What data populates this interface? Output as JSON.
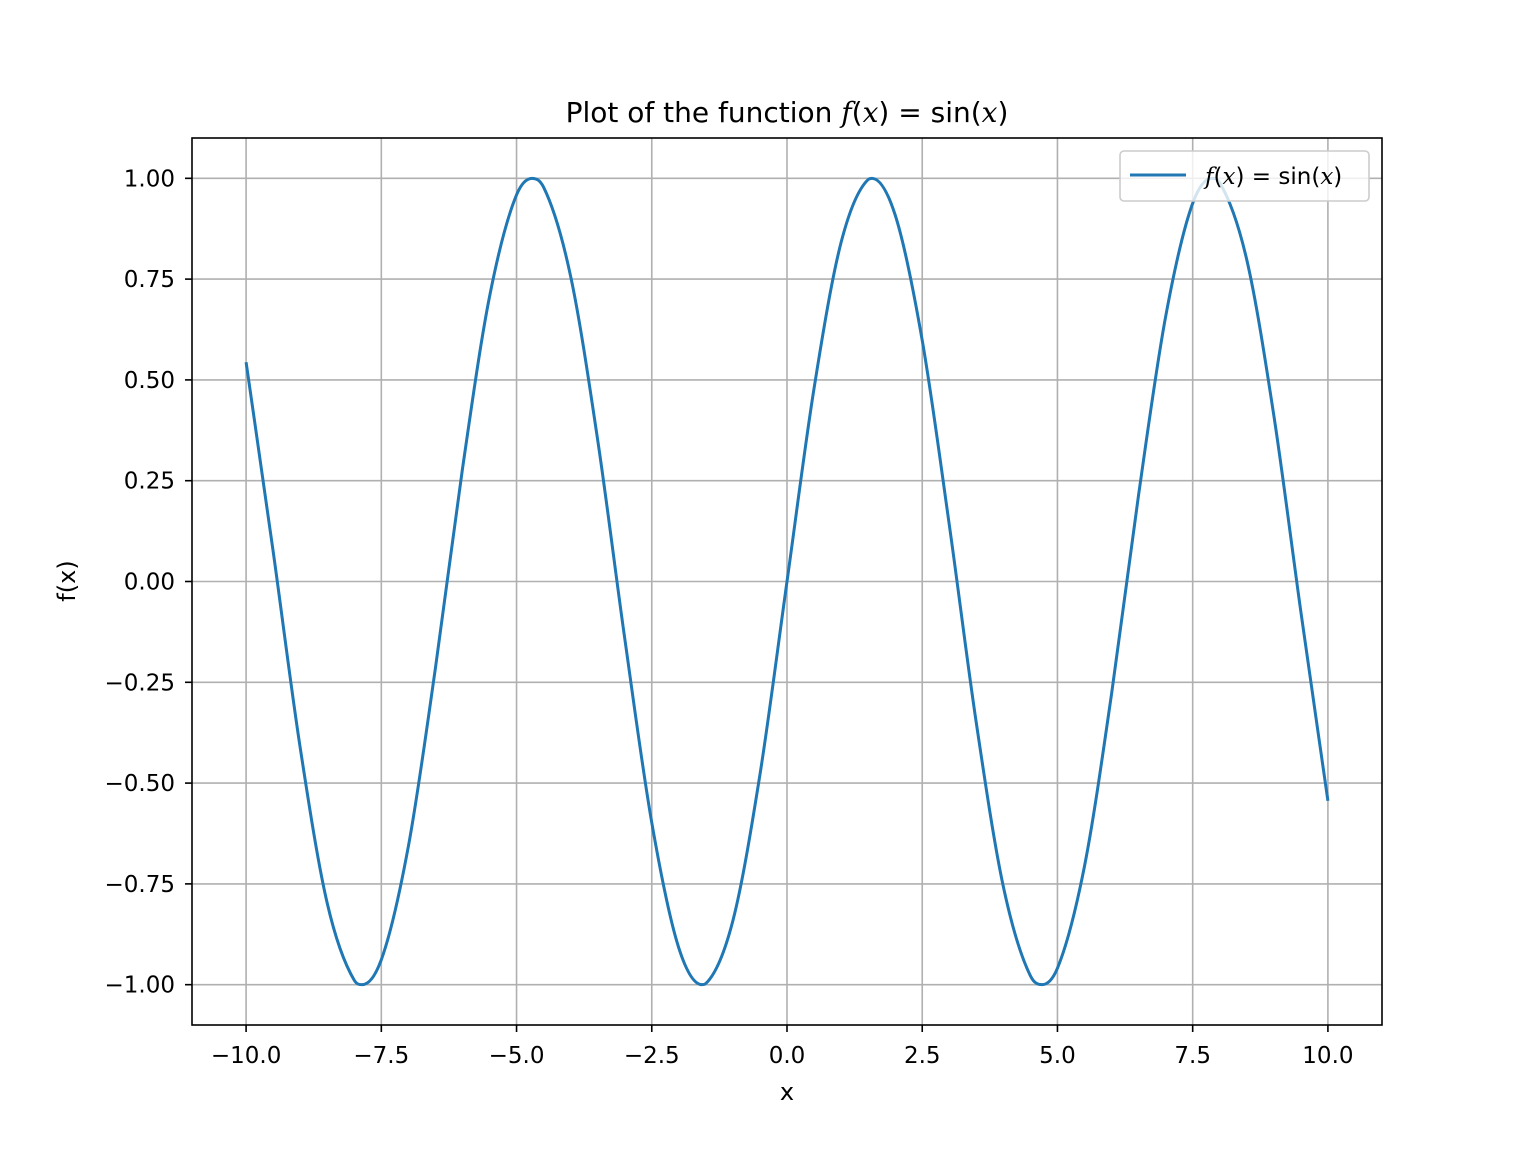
{
  "chart_data": {
    "type": "line",
    "title": {
      "prefix": "Plot of the function ",
      "math": {
        "f": "f",
        "open": "(",
        "var": "x",
        "close": ")",
        "eq": " = ",
        "fn": "sin",
        "arg_open": "(",
        "arg_var": "x",
        "arg_close": ")"
      }
    },
    "xlabel": "x",
    "ylabel": "f(x)",
    "xlim": [
      -11.0,
      11.0
    ],
    "ylim": [
      -1.1,
      1.1
    ],
    "x_ticks": [
      -10.0,
      -7.5,
      -5.0,
      -2.5,
      0.0,
      2.5,
      5.0,
      7.5,
      10.0
    ],
    "x_tick_labels": [
      "−10.0",
      "−7.5",
      "−5.0",
      "−2.5",
      "0.0",
      "2.5",
      "5.0",
      "7.5",
      "10.0"
    ],
    "y_ticks": [
      1.0,
      0.75,
      0.5,
      0.25,
      0.0,
      -0.25,
      -0.5,
      -0.75,
      -1.0
    ],
    "y_tick_labels": [
      "1.00",
      "0.75",
      "0.50",
      "0.25",
      "0.00",
      "−0.25",
      "−0.50",
      "−0.75",
      "−1.00"
    ],
    "grid": true,
    "legend_position": "top-right",
    "series": [
      {
        "name": "f(x) = sin(x)",
        "color": "#1f77b4",
        "x": [
          -10.0,
          -9.5,
          -9.0,
          -8.5,
          -8.0,
          -7.854,
          -7.5,
          -7.0,
          -6.5,
          -6.0,
          -5.5,
          -5.0,
          -4.712,
          -4.5,
          -4.0,
          -3.5,
          -3.0,
          -2.5,
          -2.0,
          -1.571,
          -1.5,
          -1.0,
          -0.5,
          0.0,
          0.5,
          1.0,
          1.5,
          1.571,
          2.0,
          2.5,
          3.0,
          3.5,
          4.0,
          4.5,
          4.712,
          5.0,
          5.5,
          6.0,
          6.5,
          7.0,
          7.5,
          7.854,
          8.0,
          8.5,
          9.0,
          9.5,
          10.0
        ],
        "y": [
          0.544,
          0.075,
          -0.412,
          -0.798,
          -0.989,
          -1.0,
          -0.938,
          -0.657,
          -0.215,
          0.279,
          0.706,
          0.959,
          1.0,
          0.978,
          0.757,
          0.351,
          -0.141,
          -0.598,
          -0.909,
          -1.0,
          -0.997,
          -0.841,
          -0.479,
          0.0,
          0.479,
          0.841,
          0.997,
          1.0,
          0.909,
          0.598,
          0.141,
          -0.351,
          -0.757,
          -0.978,
          -1.0,
          -0.959,
          -0.706,
          -0.279,
          0.215,
          0.657,
          0.938,
          1.0,
          0.989,
          0.798,
          0.412,
          -0.075,
          -0.544
        ]
      }
    ]
  },
  "legend": {
    "f": "f",
    "open": "(",
    "var": "x",
    "close": ")",
    "eq": " = ",
    "fn": "sin",
    "arg_open": "(",
    "arg_var": "x",
    "arg_close": ")"
  }
}
